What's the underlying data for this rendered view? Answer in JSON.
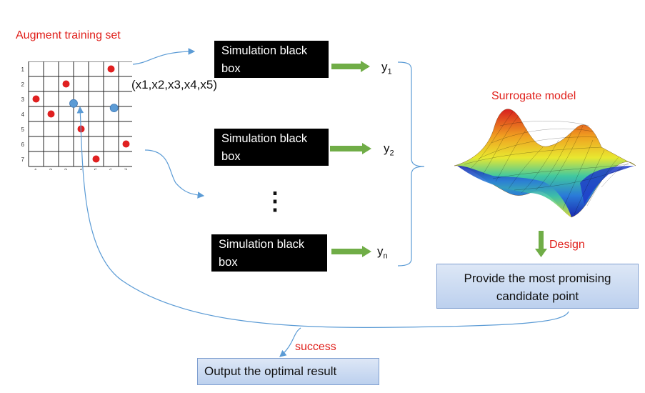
{
  "labels": {
    "augment": "Augment training set",
    "tuple": "(x1,x2,x3,x4,x5)",
    "surrogate": "Surrogate model",
    "design": "Design",
    "success": "success"
  },
  "grid": {
    "size": 7,
    "row_ticks": [
      "1",
      "2",
      "3",
      "4",
      "5",
      "6",
      "7"
    ],
    "col_ticks": [
      "1",
      "2",
      "3",
      "4",
      "5",
      "6",
      "7"
    ],
    "red_points": [
      [
        6,
        1
      ],
      [
        3,
        2
      ],
      [
        1,
        3
      ],
      [
        2,
        4
      ],
      [
        4,
        5
      ],
      [
        7,
        6
      ],
      [
        5,
        7
      ]
    ],
    "blue_points": [
      [
        3.5,
        3.3
      ],
      [
        6.2,
        3.6
      ]
    ],
    "red_color": "#e02020",
    "blue_color": "#5b9bd5"
  },
  "sim_boxes": [
    {
      "line1": "Simulation black",
      "line2": "box",
      "output": "y",
      "sub": "1"
    },
    {
      "line1": "Simulation black",
      "line2": "box",
      "output": "y",
      "sub": "2"
    },
    {
      "line1": "Simulation black",
      "line2": "box",
      "output": "y",
      "sub": "n"
    }
  ],
  "ellipsis": "⋮",
  "candidate_box": {
    "line1": "Provide the most promising",
    "line2": "candidate point"
  },
  "output_box": {
    "label": "Output the optimal result"
  },
  "colors": {
    "label_red": "#e0201b",
    "arrow_green": "#70ad47",
    "connector_blue": "#5b9bd5"
  }
}
